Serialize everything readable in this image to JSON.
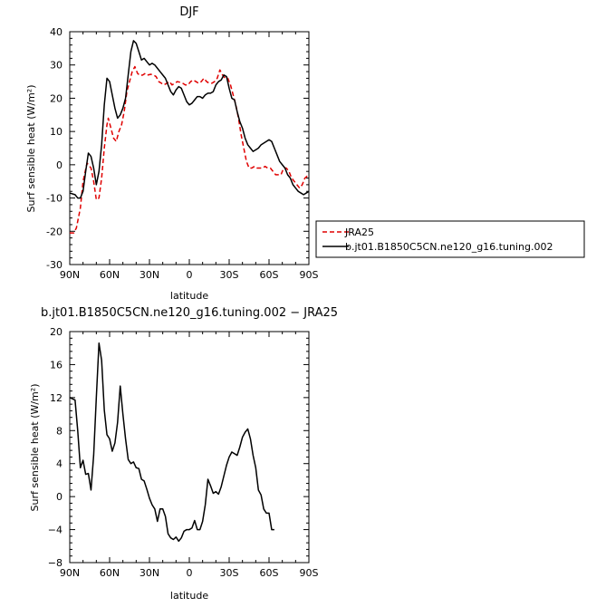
{
  "chart_data": [
    {
      "type": "line",
      "title": "DJF",
      "xlabel": "latitude",
      "ylabel": "Surf sensible heat (W/m²)",
      "xlim": [
        -90,
        90
      ],
      "ylim": [
        -30,
        40
      ],
      "x_ticks": [
        -90,
        -60,
        -30,
        0,
        30,
        60,
        90
      ],
      "x_tick_labels": [
        "90N",
        "60N",
        "30N",
        "0",
        "30S",
        "60S",
        "90S"
      ],
      "y_ticks": [
        -30,
        -20,
        -10,
        0,
        10,
        20,
        30,
        40
      ],
      "y_tick_labels": [
        "-30",
        "-20",
        "-10",
        "0",
        "10",
        "20",
        "30",
        "40"
      ],
      "legend_position": "right",
      "series": [
        {
          "name": "JRA25",
          "color": "#e00000",
          "dashed": true,
          "points": [
            [
              -90,
              -20.5
            ],
            [
              -87,
              -20.5
            ],
            [
              -85,
              -19
            ],
            [
              -82,
              -13
            ],
            [
              -80,
              -5
            ],
            [
              -77,
              0.5
            ],
            [
              -74,
              -1
            ],
            [
              -72,
              -5
            ],
            [
              -70,
              -10.5
            ],
            [
              -68,
              -10
            ],
            [
              -66,
              -4
            ],
            [
              -64,
              5
            ],
            [
              -62,
              12
            ],
            [
              -61,
              14
            ],
            [
              -59,
              11
            ],
            [
              -57,
              8
            ],
            [
              -55,
              7
            ],
            [
              -53,
              10
            ],
            [
              -51,
              12
            ],
            [
              -49,
              16
            ],
            [
              -47,
              22
            ],
            [
              -45,
              25
            ],
            [
              -43,
              28
            ],
            [
              -41,
              29.5
            ],
            [
              -39,
              27.5
            ],
            [
              -37,
              26.8
            ],
            [
              -35,
              27
            ],
            [
              -33,
              27.5
            ],
            [
              -31,
              27
            ],
            [
              -29,
              27.2
            ],
            [
              -27,
              27
            ],
            [
              -25,
              26.5
            ],
            [
              -23,
              25
            ],
            [
              -21,
              24.5
            ],
            [
              -19,
              24
            ],
            [
              -17,
              24.5
            ],
            [
              -15,
              25
            ],
            [
              -13,
              24
            ],
            [
              -11,
              24.5
            ],
            [
              -9,
              25
            ],
            [
              -7,
              24.8
            ],
            [
              -5,
              24.5
            ],
            [
              -3,
              24
            ],
            [
              -1,
              24
            ],
            [
              1,
              25
            ],
            [
              3,
              25.5
            ],
            [
              5,
              25
            ],
            [
              7,
              24.5
            ],
            [
              9,
              25
            ],
            [
              11,
              26
            ],
            [
              13,
              25
            ],
            [
              15,
              24.5
            ],
            [
              17,
              24.5
            ],
            [
              19,
              25
            ],
            [
              21,
              26
            ],
            [
              23,
              28.5
            ],
            [
              25,
              27
            ],
            [
              27,
              26
            ],
            [
              29,
              26
            ],
            [
              31,
              24
            ],
            [
              33,
              21
            ],
            [
              35,
              18
            ],
            [
              37,
              14
            ],
            [
              39,
              9
            ],
            [
              41,
              5
            ],
            [
              43,
              1
            ],
            [
              45,
              -1
            ],
            [
              47,
              -1
            ],
            [
              49,
              -0.5
            ],
            [
              51,
              -1
            ],
            [
              53,
              -1
            ],
            [
              55,
              -1
            ],
            [
              57,
              -0.5
            ],
            [
              59,
              -1
            ],
            [
              61,
              -1
            ],
            [
              63,
              -2
            ],
            [
              65,
              -3
            ],
            [
              67,
              -3
            ],
            [
              69,
              -3
            ],
            [
              71,
              -1
            ],
            [
              73,
              -1
            ],
            [
              75,
              -2
            ],
            [
              77,
              -4
            ],
            [
              79,
              -5
            ],
            [
              81,
              -6
            ],
            [
              83,
              -7
            ],
            [
              85,
              -6
            ],
            [
              87,
              -4
            ],
            [
              90,
              -3
            ]
          ]
        },
        {
          "name": "b.jt01.B1850C5CN.ne120_g16.tuning.002",
          "color": "#000000",
          "dashed": false,
          "points": [
            [
              -90,
              -8.5
            ],
            [
              -86,
              -9
            ],
            [
              -84,
              -10
            ],
            [
              -82,
              -10
            ],
            [
              -80,
              -8
            ],
            [
              -78,
              -2
            ],
            [
              -76,
              3.5
            ],
            [
              -74,
              2.5
            ],
            [
              -72,
              -1
            ],
            [
              -70,
              -6
            ],
            [
              -68,
              -2
            ],
            [
              -66,
              6
            ],
            [
              -64,
              18
            ],
            [
              -62,
              26
            ],
            [
              -60,
              25
            ],
            [
              -58,
              21
            ],
            [
              -56,
              17
            ],
            [
              -54,
              14
            ],
            [
              -52,
              15
            ],
            [
              -50,
              17
            ],
            [
              -48,
              20
            ],
            [
              -46,
              27
            ],
            [
              -44,
              34
            ],
            [
              -42,
              37.3
            ],
            [
              -40,
              36.5
            ],
            [
              -38,
              34
            ],
            [
              -36,
              31.5
            ],
            [
              -34,
              32
            ],
            [
              -32,
              31
            ],
            [
              -30,
              30
            ],
            [
              -28,
              30.5
            ],
            [
              -26,
              30
            ],
            [
              -24,
              29
            ],
            [
              -22,
              28
            ],
            [
              -20,
              27
            ],
            [
              -18,
              26
            ],
            [
              -16,
              24
            ],
            [
              -14,
              22
            ],
            [
              -12,
              21
            ],
            [
              -10,
              22.5
            ],
            [
              -8,
              23.5
            ],
            [
              -6,
              23
            ],
            [
              -4,
              21
            ],
            [
              -2,
              19
            ],
            [
              0,
              18
            ],
            [
              2,
              18.5
            ],
            [
              4,
              19.5
            ],
            [
              6,
              20.5
            ],
            [
              8,
              20.5
            ],
            [
              10,
              20
            ],
            [
              12,
              21
            ],
            [
              14,
              21.5
            ],
            [
              16,
              21.5
            ],
            [
              18,
              22
            ],
            [
              20,
              24
            ],
            [
              22,
              25
            ],
            [
              24,
              25.5
            ],
            [
              26,
              27
            ],
            [
              28,
              26.5
            ],
            [
              30,
              23
            ],
            [
              32,
              20
            ],
            [
              34,
              19.5
            ],
            [
              36,
              16
            ],
            [
              38,
              13
            ],
            [
              40,
              11
            ],
            [
              42,
              8
            ],
            [
              44,
              6
            ],
            [
              46,
              5
            ],
            [
              48,
              4
            ],
            [
              50,
              4.5
            ],
            [
              52,
              5
            ],
            [
              54,
              6
            ],
            [
              56,
              6.5
            ],
            [
              58,
              7
            ],
            [
              60,
              7.5
            ],
            [
              62,
              7
            ],
            [
              64,
              5
            ],
            [
              66,
              3
            ],
            [
              68,
              1
            ],
            [
              70,
              0
            ],
            [
              72,
              -1
            ],
            [
              74,
              -3
            ],
            [
              76,
              -4
            ],
            [
              78,
              -6
            ],
            [
              80,
              -7
            ],
            [
              82,
              -8
            ],
            [
              84,
              -8.5
            ],
            [
              86,
              -9
            ],
            [
              88,
              -8.5
            ],
            [
              90,
              -8
            ]
          ]
        }
      ]
    },
    {
      "type": "line",
      "title": "b.jt01.B1850C5CN.ne120_g16.tuning.002 − JRA25",
      "xlabel": "latitude",
      "ylabel": "Surf sensible heat (W/m²)",
      "xlim": [
        -90,
        90
      ],
      "ylim": [
        -8,
        20
      ],
      "x_ticks": [
        -90,
        -60,
        -30,
        0,
        30,
        60,
        90
      ],
      "x_tick_labels": [
        "90N",
        "60N",
        "30N",
        "0",
        "30S",
        "60S",
        "90S"
      ],
      "y_ticks": [
        -8,
        -4,
        0,
        4,
        8,
        12,
        16,
        20
      ],
      "y_tick_labels": [
        "−8",
        "−4",
        "0",
        "4",
        "8",
        "12",
        "16",
        "20"
      ],
      "series": [
        {
          "name": "",
          "color": "#000000",
          "dashed": false,
          "points": [
            [
              -90,
              12
            ],
            [
              -86,
              11.7
            ],
            [
              -84,
              8
            ],
            [
              -82,
              3.5
            ],
            [
              -80,
              4.4
            ],
            [
              -78,
              2.7
            ],
            [
              -76,
              2.8
            ],
            [
              -74,
              0.8
            ],
            [
              -72,
              5
            ],
            [
              -70,
              12
            ],
            [
              -68,
              18.6
            ],
            [
              -66,
              16.5
            ],
            [
              -64,
              10.5
            ],
            [
              -62,
              7.5
            ],
            [
              -60,
              7
            ],
            [
              -58,
              5.5
            ],
            [
              -56,
              6.5
            ],
            [
              -54,
              9
            ],
            [
              -52,
              13.4
            ],
            [
              -50,
              10
            ],
            [
              -48,
              7
            ],
            [
              -46,
              4.5
            ],
            [
              -44,
              4
            ],
            [
              -42,
              4.2
            ],
            [
              -40,
              3.5
            ],
            [
              -38,
              3.4
            ],
            [
              -36,
              2.1
            ],
            [
              -34,
              1.9
            ],
            [
              -32,
              0.9
            ],
            [
              -30,
              -0.2
            ],
            [
              -28,
              -1
            ],
            [
              -26,
              -1.5
            ],
            [
              -24,
              -3
            ],
            [
              -22,
              -1.5
            ],
            [
              -20,
              -1.5
            ],
            [
              -18,
              -2.4
            ],
            [
              -16,
              -4.5
            ],
            [
              -14,
              -5
            ],
            [
              -12,
              -5.2
            ],
            [
              -10,
              -4.9
            ],
            [
              -8,
              -5.4
            ],
            [
              -6,
              -5
            ],
            [
              -4,
              -4.2
            ],
            [
              -2,
              -4
            ],
            [
              0,
              -4
            ],
            [
              2,
              -3.8
            ],
            [
              4,
              -2.9
            ],
            [
              6,
              -4
            ],
            [
              8,
              -4
            ],
            [
              10,
              -3
            ],
            [
              12,
              -1
            ],
            [
              14,
              2.1
            ],
            [
              16,
              1.3
            ],
            [
              18,
              0.4
            ],
            [
              20,
              0.6
            ],
            [
              22,
              0.3
            ],
            [
              24,
              1.2
            ],
            [
              26,
              2.5
            ],
            [
              28,
              3.8
            ],
            [
              30,
              4.8
            ],
            [
              32,
              5.4
            ],
            [
              34,
              5.2
            ],
            [
              36,
              5
            ],
            [
              38,
              6
            ],
            [
              40,
              7.2
            ],
            [
              42,
              7.8
            ],
            [
              44,
              8.2
            ],
            [
              46,
              7
            ],
            [
              48,
              5
            ],
            [
              50,
              3.5
            ],
            [
              52,
              0.8
            ],
            [
              54,
              0.2
            ],
            [
              56,
              -1.5
            ],
            [
              58,
              -2
            ],
            [
              60,
              -2
            ],
            [
              62,
              -4
            ],
            [
              64,
              -4
            ]
          ]
        }
      ]
    }
  ]
}
